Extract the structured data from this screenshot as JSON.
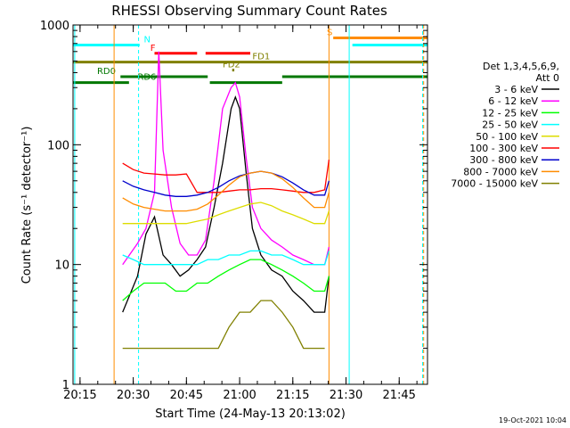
{
  "chart_data": {
    "type": "line",
    "title": "RHESSI Observing Summary Count Rates",
    "xlabel": "Start Time (24-May-13 20:13:02)",
    "ylabel": "Count Rate (s⁻¹ detector⁻¹)",
    "yscale": "log",
    "xlim": [
      20.217,
      21.883
    ],
    "ylim": [
      1,
      1000
    ],
    "x_ticks": [
      {
        "label": "20:15",
        "x": 20.25
      },
      {
        "label": "20:30",
        "x": 20.5
      },
      {
        "label": "20:45",
        "x": 20.75
      },
      {
        "label": "21:00",
        "x": 21.0
      },
      {
        "label": "21:15",
        "x": 21.25
      },
      {
        "label": "21:30",
        "x": 21.5
      },
      {
        "label": "21:45",
        "x": 21.75
      }
    ],
    "y_ticks": [
      {
        "label": "1",
        "y": 1
      },
      {
        "label": "10",
        "y": 10
      },
      {
        "label": "100",
        "y": 100
      },
      {
        "label": "1000",
        "y": 1000
      }
    ],
    "legend_header": [
      "Det 1,3,4,5,6,9,",
      "Att 0"
    ],
    "legend_position": "right",
    "series": [
      {
        "name": "3 - 6 keV",
        "color": "#000000",
        "x": [
          20.45,
          20.52,
          20.56,
          20.6,
          20.64,
          20.68,
          20.72,
          20.76,
          20.8,
          20.84,
          20.88,
          20.92,
          20.96,
          20.98,
          21.0,
          21.03,
          21.06,
          21.1,
          21.15,
          21.2,
          21.25,
          21.3,
          21.35,
          21.4,
          21.42
        ],
        "y": [
          4,
          8,
          18,
          25,
          12,
          10,
          8,
          9,
          11,
          14,
          30,
          70,
          200,
          250,
          200,
          60,
          20,
          12,
          9,
          8,
          6,
          5,
          4,
          4,
          8
        ]
      },
      {
        "name": "6 - 12 keV",
        "color": "#ff00ff",
        "x": [
          20.45,
          20.52,
          20.56,
          20.6,
          20.62,
          20.64,
          20.68,
          20.72,
          20.76,
          20.8,
          20.84,
          20.88,
          20.92,
          20.96,
          20.98,
          21.0,
          21.03,
          21.06,
          21.1,
          21.15,
          21.2,
          21.25,
          21.3,
          21.35,
          21.4,
          21.42
        ],
        "y": [
          10,
          15,
          20,
          40,
          600,
          90,
          30,
          15,
          12,
          12,
          16,
          50,
          200,
          300,
          330,
          250,
          80,
          30,
          20,
          16,
          14,
          12,
          11,
          10,
          10,
          14
        ]
      },
      {
        "name": "12 - 25 keV",
        "color": "#00ff00",
        "x": [
          20.45,
          20.5,
          20.55,
          20.6,
          20.65,
          20.7,
          20.75,
          20.8,
          20.85,
          20.9,
          20.95,
          21.0,
          21.05,
          21.1,
          21.15,
          21.2,
          21.25,
          21.3,
          21.35,
          21.4,
          21.42
        ],
        "y": [
          5,
          6,
          7,
          7,
          7,
          6,
          6,
          7,
          7,
          8,
          9,
          10,
          11,
          11,
          10,
          9,
          8,
          7,
          6,
          6,
          8
        ]
      },
      {
        "name": "25 - 50 keV",
        "color": "#00ffff",
        "x": [
          20.45,
          20.5,
          20.55,
          20.6,
          20.65,
          20.7,
          20.75,
          20.8,
          20.85,
          20.9,
          20.95,
          21.0,
          21.05,
          21.1,
          21.15,
          21.2,
          21.25,
          21.3,
          21.35,
          21.4,
          21.42
        ],
        "y": [
          12,
          11,
          10,
          10,
          10,
          10,
          10,
          10,
          11,
          11,
          12,
          12,
          13,
          13,
          12,
          12,
          11,
          10,
          10,
          10,
          13
        ]
      },
      {
        "name": "50 - 100 keV",
        "color": "#dddd00",
        "x": [
          20.45,
          20.5,
          20.55,
          20.6,
          20.65,
          20.7,
          20.75,
          20.8,
          20.85,
          20.9,
          20.95,
          21.0,
          21.05,
          21.1,
          21.15,
          21.2,
          21.25,
          21.3,
          21.35,
          21.4,
          21.42
        ],
        "y": [
          22,
          22,
          22,
          22,
          22,
          22,
          22,
          23,
          24,
          26,
          28,
          30,
          32,
          33,
          31,
          28,
          26,
          24,
          22,
          22,
          28
        ]
      },
      {
        "name": "100 - 300 keV",
        "color": "#ff0000",
        "x": [
          20.45,
          20.5,
          20.55,
          20.6,
          20.65,
          20.7,
          20.75,
          20.8,
          20.85,
          20.9,
          20.95,
          21.0,
          21.05,
          21.1,
          21.15,
          21.2,
          21.25,
          21.3,
          21.35,
          21.4,
          21.42
        ],
        "y": [
          70,
          62,
          58,
          57,
          56,
          56,
          57,
          40,
          40,
          40,
          41,
          42,
          42,
          43,
          43,
          42,
          41,
          40,
          40,
          42,
          75
        ]
      },
      {
        "name": "300 - 800 keV",
        "color": "#0000cc",
        "x": [
          20.45,
          20.5,
          20.55,
          20.6,
          20.65,
          20.7,
          20.75,
          20.8,
          20.85,
          20.9,
          20.95,
          21.0,
          21.05,
          21.1,
          21.15,
          21.2,
          21.25,
          21.3,
          21.35,
          21.4,
          21.42
        ],
        "y": [
          50,
          45,
          42,
          40,
          38,
          37,
          37,
          38,
          40,
          44,
          50,
          55,
          58,
          60,
          58,
          54,
          48,
          42,
          38,
          38,
          50
        ]
      },
      {
        "name": "800 - 7000 keV",
        "color": "#ff8c00",
        "x": [
          20.45,
          20.5,
          20.55,
          20.6,
          20.65,
          20.7,
          20.75,
          20.8,
          20.85,
          20.9,
          20.95,
          21.0,
          21.05,
          21.1,
          21.15,
          21.2,
          21.25,
          21.3,
          21.35,
          21.4,
          21.42
        ],
        "y": [
          36,
          32,
          30,
          29,
          28,
          28,
          28,
          29,
          32,
          38,
          46,
          54,
          58,
          60,
          58,
          52,
          44,
          36,
          30,
          30,
          40
        ]
      },
      {
        "name": "7000 - 15000 keV",
        "color": "#808000",
        "x": [
          20.45,
          20.5,
          20.55,
          20.6,
          20.65,
          20.7,
          20.75,
          20.8,
          20.85,
          20.9,
          20.95,
          21.0,
          21.05,
          21.1,
          21.15,
          21.2,
          21.25,
          21.3,
          21.35,
          21.4
        ],
        "y": [
          2,
          2,
          2,
          2,
          2,
          2,
          2,
          2,
          2,
          2,
          3,
          4,
          4,
          5,
          5,
          4,
          3,
          2,
          2,
          2
        ]
      }
    ],
    "flag_bars": [
      {
        "label": "N",
        "color": "#00ffff",
        "y": 680,
        "segments": [
          [
            20.217,
            20.53
          ],
          [
            21.53,
            21.883
          ]
        ],
        "label_x": 20.55
      },
      {
        "label": "S",
        "color": "#ff8c00",
        "y": 780,
        "segments": [
          [
            21.44,
            21.883
          ]
        ],
        "label_x": 21.41
      },
      {
        "label": "F",
        "color": "#ff0000",
        "y": 580,
        "segments": [
          [
            20.6,
            20.8
          ],
          [
            20.84,
            21.05
          ]
        ],
        "label_x": 20.58
      },
      {
        "label": "FD1",
        "color": "#808000",
        "y": 490,
        "segments": [
          [
            20.217,
            21.883
          ]
        ],
        "label_x": 21.06
      },
      {
        "label": "FD2",
        "color": "#808000",
        "y": 420,
        "segments": [
          [
            20.965,
            20.975
          ]
        ],
        "label_x": 20.92
      },
      {
        "label": "RD0",
        "color": "#007700",
        "y": 370,
        "segments": [
          [
            20.44,
            20.85
          ],
          [
            21.2,
            21.883
          ]
        ],
        "label_x": 20.33
      },
      {
        "label": "RD6",
        "color": "#007700",
        "y": 330,
        "segments": [
          [
            20.217,
            20.48
          ],
          [
            20.86,
            21.2
          ]
        ],
        "label_x": 20.52
      }
    ],
    "vertical_markers": [
      {
        "x": 20.225,
        "color": "#00ffff",
        "style": "solid"
      },
      {
        "x": 20.525,
        "color": "#00ffff",
        "style": "dashed"
      },
      {
        "x": 20.41,
        "color": "#ff8c00",
        "style": "solid"
      },
      {
        "x": 21.42,
        "color": "#ff8c00",
        "style": "solid"
      },
      {
        "x": 21.515,
        "color": "#00ffff",
        "style": "solid"
      },
      {
        "x": 21.86,
        "color": "#00ffff",
        "style": "dashed"
      },
      {
        "x": 21.865,
        "color": "#ff8c00",
        "style": "dashed"
      }
    ],
    "timestamp": "19-Oct-2021 10:04"
  }
}
